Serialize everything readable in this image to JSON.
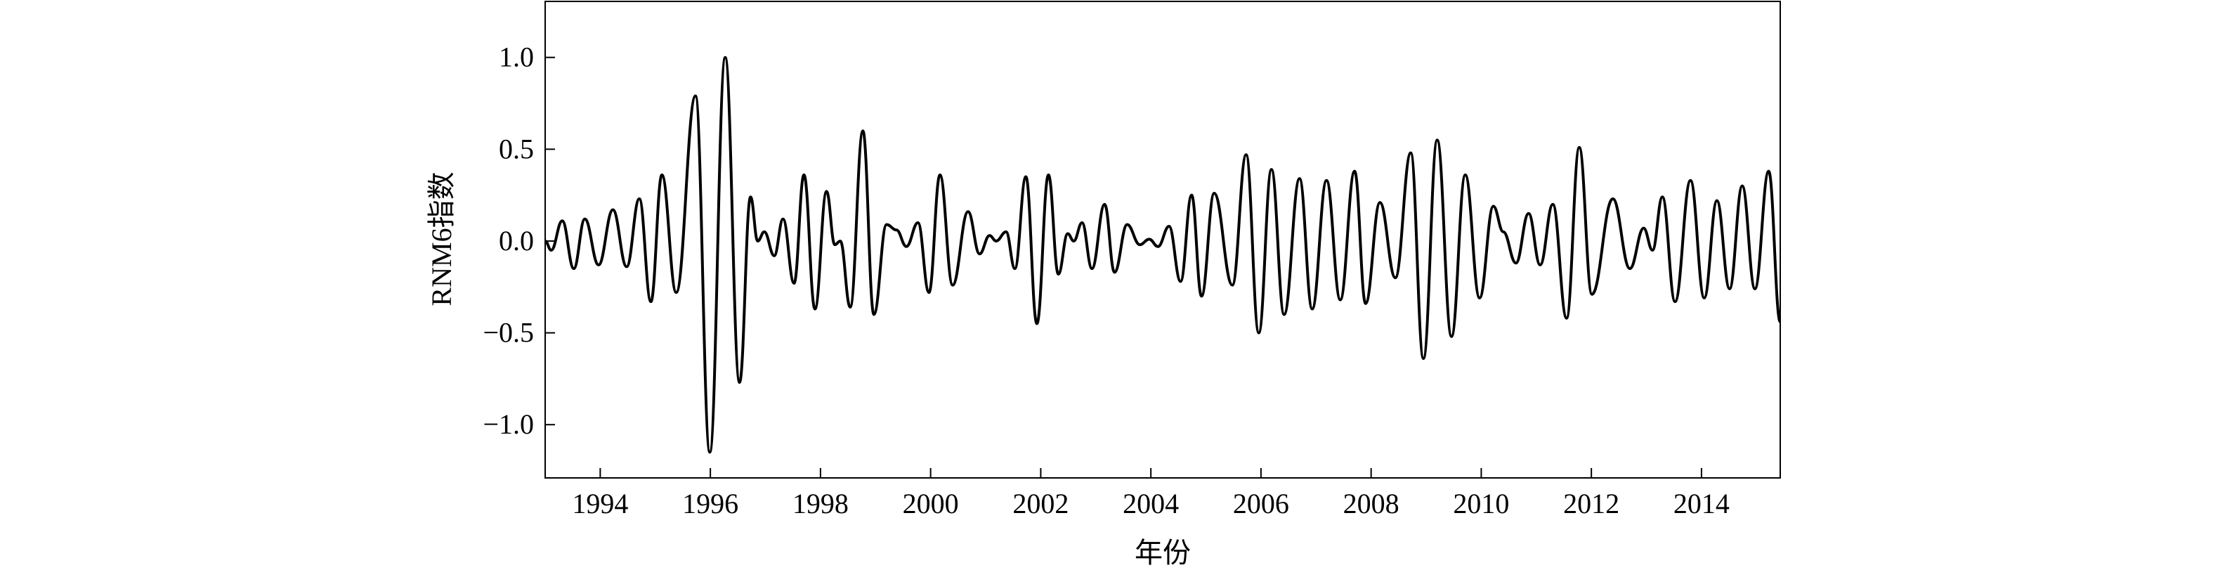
{
  "chart_data": {
    "type": "line",
    "x_label": "年份",
    "y_label": "RNM6指数",
    "xlim": [
      1993.0,
      2015.43
    ],
    "ylim": [
      -1.29,
      1.305
    ],
    "xticks": [
      1994,
      1996,
      1998,
      2000,
      2002,
      2004,
      2006,
      2008,
      2010,
      2012,
      2014
    ],
    "yticks": [
      {
        "value": -1.0,
        "label": "−1.0"
      },
      {
        "value": -0.5,
        "label": "−0.5"
      },
      {
        "value": 0.0,
        "label": "0.0"
      },
      {
        "value": 0.5,
        "label": "0.5"
      },
      {
        "value": 1.0,
        "label": "1.0"
      }
    ],
    "color": "#000000",
    "x": [
      1993.0,
      1993.11,
      1993.31,
      1993.52,
      1993.72,
      1993.97,
      1994.23,
      1994.48,
      1994.71,
      1994.92,
      1995.12,
      1995.38,
      1995.73,
      1995.99,
      1996.27,
      1996.53,
      1996.73,
      1996.86,
      1996.98,
      1997.16,
      1997.32,
      1997.52,
      1997.7,
      1997.9,
      1998.11,
      1998.26,
      1998.36,
      1998.54,
      1998.77,
      1998.97,
      1999.2,
      1999.38,
      1999.56,
      1999.77,
      1999.97,
      2000.17,
      2000.4,
      2000.68,
      2000.89,
      2001.07,
      2001.19,
      2001.37,
      2001.53,
      2001.73,
      2001.93,
      2002.14,
      2002.32,
      2002.49,
      2002.6,
      2002.75,
      2002.93,
      2003.16,
      2003.34,
      2003.57,
      2003.8,
      2003.97,
      2004.13,
      2004.33,
      2004.54,
      2004.74,
      2004.92,
      2005.15,
      2005.48,
      2005.73,
      2005.96,
      2006.19,
      2006.42,
      2006.7,
      2006.93,
      2007.19,
      2007.44,
      2007.7,
      2007.9,
      2008.16,
      2008.44,
      2008.72,
      2008.95,
      2009.2,
      2009.46,
      2009.71,
      2009.97,
      2010.22,
      2010.4,
      2010.63,
      2010.86,
      2011.07,
      2011.3,
      2011.55,
      2011.78,
      2012.01,
      2012.39,
      2012.7,
      2012.95,
      2013.11,
      2013.29,
      2013.52,
      2013.8,
      2014.05,
      2014.28,
      2014.51,
      2014.74,
      2014.97,
      2015.22,
      2015.43
    ],
    "values": [
      0.0,
      -0.05,
      0.11,
      -0.15,
      0.12,
      -0.13,
      0.17,
      -0.14,
      0.23,
      -0.33,
      0.36,
      -0.28,
      0.79,
      -1.15,
      1.0,
      -0.77,
      0.24,
      0.0,
      0.05,
      -0.08,
      0.12,
      -0.23,
      0.36,
      -0.37,
      0.27,
      -0.02,
      0.0,
      -0.36,
      0.6,
      -0.4,
      0.09,
      0.06,
      -0.03,
      0.1,
      -0.28,
      0.36,
      -0.24,
      0.16,
      -0.07,
      0.03,
      0.0,
      0.05,
      -0.15,
      0.35,
      -0.45,
      0.36,
      -0.18,
      0.04,
      0.0,
      0.1,
      -0.15,
      0.2,
      -0.17,
      0.09,
      -0.02,
      0.01,
      -0.03,
      0.08,
      -0.22,
      0.25,
      -0.3,
      0.26,
      -0.24,
      0.47,
      -0.5,
      0.39,
      -0.4,
      0.34,
      -0.37,
      0.33,
      -0.32,
      0.38,
      -0.34,
      0.21,
      -0.2,
      0.48,
      -0.64,
      0.55,
      -0.52,
      0.36,
      -0.31,
      0.19,
      0.05,
      -0.12,
      0.15,
      -0.13,
      0.2,
      -0.42,
      0.51,
      -0.29,
      0.23,
      -0.15,
      0.07,
      -0.05,
      0.24,
      -0.33,
      0.33,
      -0.31,
      0.22,
      -0.26,
      0.3,
      -0.26,
      0.38,
      -0.44
    ]
  }
}
